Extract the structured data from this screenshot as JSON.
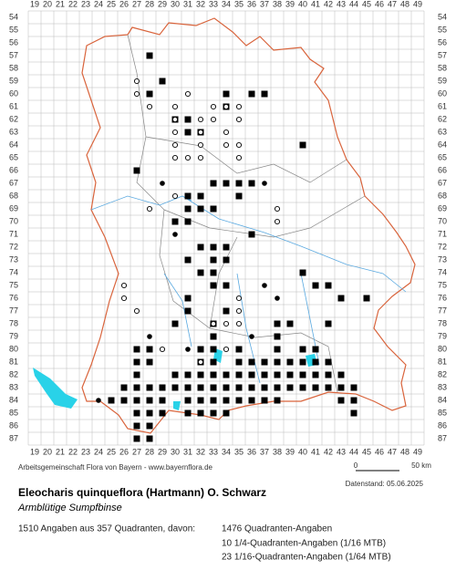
{
  "map": {
    "columns": [
      19,
      20,
      21,
      22,
      23,
      24,
      25,
      26,
      27,
      28,
      29,
      30,
      31,
      32,
      33,
      34,
      35,
      36,
      37,
      38,
      39,
      40,
      41,
      42,
      43,
      44,
      45,
      46,
      47,
      48,
      49
    ],
    "rows": [
      54,
      55,
      56,
      57,
      58,
      59,
      60,
      61,
      62,
      63,
      64,
      65,
      66,
      67,
      68,
      69,
      70,
      71,
      72,
      73,
      74,
      75,
      76,
      77,
      78,
      79,
      80,
      81,
      82,
      83,
      84,
      85,
      86,
      87
    ],
    "filled_squares": [
      [
        28,
        57
      ],
      [
        29,
        59
      ],
      [
        28,
        60
      ],
      [
        34,
        60
      ],
      [
        36,
        60
      ],
      [
        37,
        60
      ],
      [
        34,
        61
      ],
      [
        30,
        62
      ],
      [
        31,
        62
      ],
      [
        31,
        63
      ],
      [
        32,
        63
      ],
      [
        40,
        64
      ],
      [
        27,
        66
      ],
      [
        33,
        67
      ],
      [
        34,
        67
      ],
      [
        35,
        67
      ],
      [
        36,
        67
      ],
      [
        31,
        68
      ],
      [
        32,
        68
      ],
      [
        35,
        68
      ],
      [
        31,
        69
      ],
      [
        32,
        69
      ],
      [
        33,
        69
      ],
      [
        30,
        70
      ],
      [
        31,
        70
      ],
      [
        36,
        71
      ],
      [
        32,
        72
      ],
      [
        33,
        72
      ],
      [
        34,
        72
      ],
      [
        31,
        73
      ],
      [
        33,
        73
      ],
      [
        34,
        73
      ],
      [
        32,
        74
      ],
      [
        33,
        74
      ],
      [
        40,
        74
      ],
      [
        33,
        75
      ],
      [
        34,
        75
      ],
      [
        41,
        75
      ],
      [
        42,
        75
      ],
      [
        31,
        76
      ],
      [
        43,
        76
      ],
      [
        45,
        76
      ],
      [
        31,
        77
      ],
      [
        34,
        77
      ],
      [
        30,
        78
      ],
      [
        33,
        78
      ],
      [
        38,
        78
      ],
      [
        39,
        78
      ],
      [
        42,
        78
      ],
      [
        33,
        79
      ],
      [
        38,
        79
      ],
      [
        27,
        80
      ],
      [
        28,
        80
      ],
      [
        32,
        80
      ],
      [
        33,
        80
      ],
      [
        35,
        80
      ],
      [
        38,
        80
      ],
      [
        40,
        80
      ],
      [
        41,
        80
      ],
      [
        27,
        81
      ],
      [
        28,
        81
      ],
      [
        32,
        81
      ],
      [
        33,
        81
      ],
      [
        35,
        81
      ],
      [
        36,
        81
      ],
      [
        37,
        81
      ],
      [
        38,
        81
      ],
      [
        39,
        81
      ],
      [
        40,
        81
      ],
      [
        41,
        81
      ],
      [
        42,
        81
      ],
      [
        27,
        82
      ],
      [
        30,
        82
      ],
      [
        31,
        82
      ],
      [
        32,
        82
      ],
      [
        33,
        82
      ],
      [
        34,
        82
      ],
      [
        35,
        82
      ],
      [
        36,
        82
      ],
      [
        37,
        82
      ],
      [
        38,
        82
      ],
      [
        39,
        82
      ],
      [
        40,
        82
      ],
      [
        41,
        82
      ],
      [
        42,
        82
      ],
      [
        43,
        82
      ],
      [
        26,
        83
      ],
      [
        27,
        83
      ],
      [
        28,
        83
      ],
      [
        29,
        83
      ],
      [
        30,
        83
      ],
      [
        31,
        83
      ],
      [
        32,
        83
      ],
      [
        33,
        83
      ],
      [
        34,
        83
      ],
      [
        35,
        83
      ],
      [
        36,
        83
      ],
      [
        37,
        83
      ],
      [
        38,
        83
      ],
      [
        39,
        83
      ],
      [
        40,
        83
      ],
      [
        41,
        83
      ],
      [
        42,
        83
      ],
      [
        43,
        83
      ],
      [
        44,
        83
      ],
      [
        25,
        84
      ],
      [
        26,
        84
      ],
      [
        27,
        84
      ],
      [
        28,
        84
      ],
      [
        29,
        84
      ],
      [
        31,
        84
      ],
      [
        32,
        84
      ],
      [
        33,
        84
      ],
      [
        34,
        84
      ],
      [
        35,
        84
      ],
      [
        36,
        84
      ],
      [
        37,
        84
      ],
      [
        38,
        84
      ],
      [
        43,
        84
      ],
      [
        44,
        84
      ],
      [
        27,
        85
      ],
      [
        28,
        85
      ],
      [
        29,
        85
      ],
      [
        31,
        85
      ],
      [
        32,
        85
      ],
      [
        33,
        85
      ],
      [
        34,
        85
      ],
      [
        44,
        85
      ],
      [
        27,
        86
      ],
      [
        28,
        86
      ],
      [
        27,
        87
      ],
      [
        28,
        87
      ]
    ],
    "open_circles": [
      [
        27,
        59
      ],
      [
        27,
        60
      ],
      [
        31,
        60
      ],
      [
        28,
        61
      ],
      [
        30,
        61
      ],
      [
        33,
        61
      ],
      [
        34,
        61
      ],
      [
        35,
        61
      ],
      [
        30,
        62
      ],
      [
        32,
        62
      ],
      [
        33,
        62
      ],
      [
        35,
        62
      ],
      [
        30,
        63
      ],
      [
        32,
        63
      ],
      [
        34,
        63
      ],
      [
        30,
        64
      ],
      [
        32,
        64
      ],
      [
        34,
        64
      ],
      [
        35,
        64
      ],
      [
        30,
        65
      ],
      [
        31,
        65
      ],
      [
        32,
        65
      ],
      [
        35,
        65
      ],
      [
        30,
        68
      ],
      [
        28,
        69
      ],
      [
        38,
        69
      ],
      [
        38,
        70
      ],
      [
        26,
        75
      ],
      [
        26,
        76
      ],
      [
        35,
        76
      ],
      [
        27,
        77
      ],
      [
        35,
        77
      ],
      [
        33,
        78
      ],
      [
        34,
        78
      ],
      [
        35,
        78
      ],
      [
        29,
        80
      ],
      [
        34,
        80
      ],
      [
        32,
        81
      ]
    ],
    "filled_circles": [
      [
        29,
        67
      ],
      [
        30,
        71
      ],
      [
        31,
        76
      ],
      [
        37,
        75
      ],
      [
        38,
        76
      ],
      [
        37,
        67
      ],
      [
        24,
        84
      ],
      [
        26,
        83
      ],
      [
        31,
        80
      ],
      [
        36,
        79
      ],
      [
        28,
        79
      ],
      [
        27,
        81
      ]
    ]
  },
  "footer": {
    "credit": "Arbeitsgemeinschaft Flora von Bayern - www.bayernflora.de",
    "scale_start": "0",
    "scale_end": "50 km",
    "date": "Datenstand: 05.06.2025",
    "title": "Eleocharis quinqueflora (Hartmann) O. Schwarz",
    "subtitle": "Armblütige Sumpfbinse",
    "summary": "1510 Angaben aus 357 Quadranten, davon:",
    "detail_1": "1476 Quadranten-Angaben",
    "detail_2": "10 1/4-Quadranten-Angaben (1/16 MTB)",
    "detail_3": "23 1/16-Quadranten-Angaben (1/64 MTB)"
  }
}
